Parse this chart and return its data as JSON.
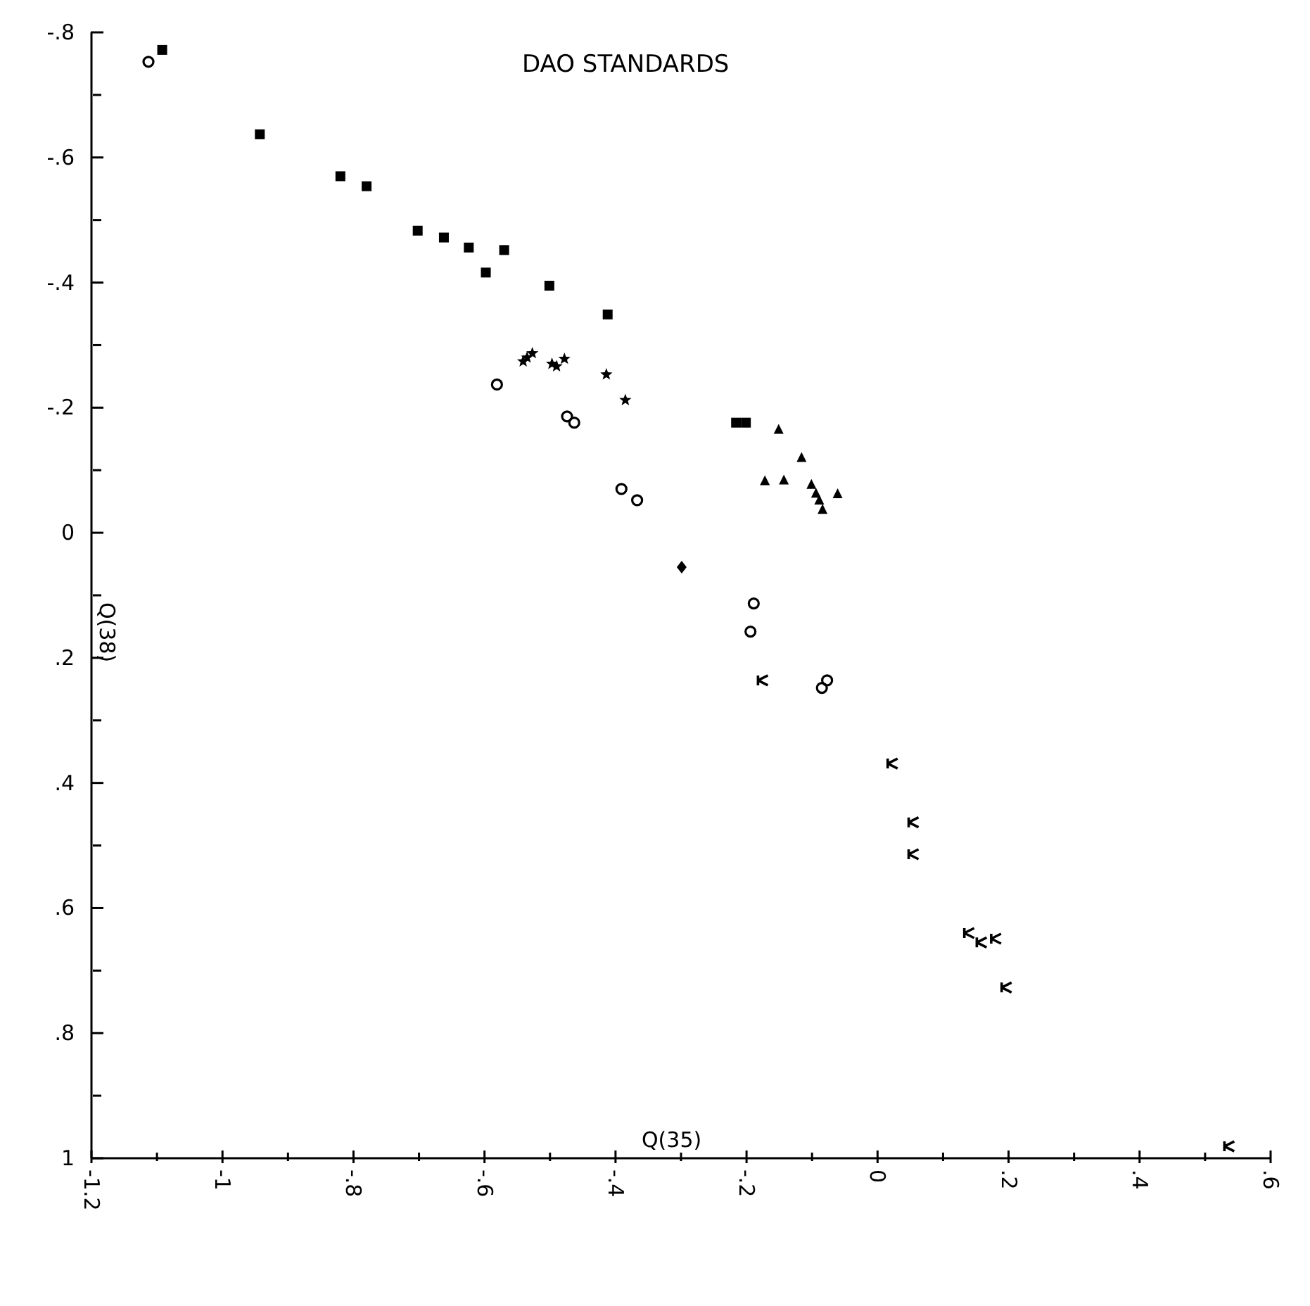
{
  "chart_data": {
    "type": "scatter",
    "title": "DAO STANDARDS",
    "xlabel": "Q(35)",
    "ylabel": "Q(38)",
    "xlim": [
      -1.2,
      0.6
    ],
    "xticks": [
      {
        "value": -1.2,
        "label": "-1.2"
      },
      {
        "value": -1.1,
        "label": null
      },
      {
        "value": -1,
        "label": "-1"
      },
      {
        "value": -0.9,
        "label": null
      },
      {
        "value": -0.8,
        "label": "-.8"
      },
      {
        "value": -0.7,
        "label": null
      },
      {
        "value": -0.6,
        "label": "-.6"
      },
      {
        "value": -0.5,
        "label": null
      },
      {
        "value": -0.4,
        "label": "-.4"
      },
      {
        "value": -0.3,
        "label": null
      },
      {
        "value": -0.2,
        "label": "-.2"
      },
      {
        "value": -0.1,
        "label": null
      },
      0,
      {
        "value": 0.1,
        "label": null
      },
      {
        "value": 0.2,
        "label": ".2"
      },
      {
        "value": 0.3,
        "label": null
      },
      {
        "value": 0.4,
        "label": ".4"
      },
      {
        "value": 0.5,
        "label": null
      },
      {
        "value": 0.6,
        "label": ".6"
      }
    ],
    "ylim": [
      1,
      -0.8
    ],
    "yticks": [
      {
        "value": -0.8,
        "label": "-.8"
      },
      {
        "value": -0.7,
        "label": null
      },
      {
        "value": -0.6,
        "label": "-.6"
      },
      {
        "value": -0.5,
        "label": null
      },
      {
        "value": -0.4,
        "label": "-.4"
      },
      {
        "value": -0.3,
        "label": null
      },
      {
        "value": -0.2,
        "label": "-.2"
      },
      {
        "value": -0.1,
        "label": null
      },
      0,
      {
        "value": 0.1,
        "label": null
      },
      {
        "value": 0.2,
        "label": ".2"
      },
      {
        "value": 0.3,
        "label": null
      },
      {
        "value": 0.4,
        "label": ".4"
      },
      {
        "value": 0.5,
        "label": null
      },
      {
        "value": 0.6,
        "label": ".6"
      },
      {
        "value": 0.7,
        "label": null
      },
      {
        "value": 0.8,
        "label": ".8"
      },
      {
        "value": 0.9,
        "label": null
      },
      1
    ],
    "series": [
      {
        "color": "#000000",
        "marker": "square",
        "x": [
          -1.092,
          -0.943,
          -0.82,
          -0.78,
          -0.702,
          -0.662,
          -0.624,
          -0.57,
          -0.598,
          -0.501,
          -0.412,
          -0.216,
          -0.201
        ],
        "values": [
          -0.772,
          -0.637,
          -0.57,
          -0.554,
          -0.483,
          -0.472,
          -0.456,
          -0.452,
          -0.416,
          -0.395,
          -0.349,
          -0.176,
          -0.176
        ]
      },
      {
        "color": "#000000",
        "marker": "star",
        "x": [
          -0.541,
          -0.535,
          -0.527,
          -0.497,
          -0.49,
          -0.478,
          -0.414,
          -0.385
        ],
        "values": [
          -0.274,
          -0.28,
          -0.287,
          -0.27,
          -0.266,
          -0.278,
          -0.253,
          -0.212
        ]
      },
      {
        "color": "#000000",
        "marker": "circle",
        "x": [
          -1.113,
          -0.581,
          -0.474,
          -0.463,
          -0.391,
          -0.367,
          -0.189,
          -0.194,
          -0.077,
          -0.085
        ],
        "values": [
          -0.753,
          -0.237,
          -0.186,
          -0.176,
          -0.07,
          -0.052,
          0.113,
          0.158,
          0.236,
          0.248
        ]
      },
      {
        "color": "#000000",
        "marker": "diamond",
        "x": [
          -0.299
        ],
        "values": [
          0.055
        ]
      },
      {
        "color": "#000000",
        "marker": "triangle",
        "x": [
          -0.151,
          -0.116,
          -0.172,
          -0.143,
          -0.101,
          -0.094,
          -0.089,
          -0.084,
          -0.061
        ],
        "values": [
          -0.166,
          -0.121,
          -0.084,
          -0.085,
          -0.078,
          -0.064,
          -0.053,
          -0.038,
          -0.063
        ]
      },
      {
        "color": "#000000",
        "marker": "cross",
        "x": [
          -0.175,
          0.023,
          0.055,
          0.055,
          0.14,
          0.159,
          0.181,
          0.197,
          0.537
        ],
        "values": [
          0.236,
          0.369,
          0.463,
          0.514,
          0.64,
          0.655,
          0.649,
          0.727,
          0.981
        ]
      }
    ]
  }
}
